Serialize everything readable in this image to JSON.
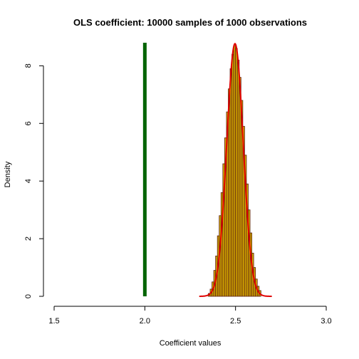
{
  "chart_data": {
    "type": "histogram",
    "title": "OLS coefficient:  10000  samples of  1000  observations",
    "xlabel": "Coefficient values",
    "ylabel": "Density",
    "xlim": [
      1.5,
      3.0
    ],
    "ylim": [
      0,
      8.8
    ],
    "xticks": [
      1.5,
      2.0,
      2.5,
      3.0
    ],
    "xtick_labels": [
      "1.5",
      "2.0",
      "2.5",
      "3.0"
    ],
    "yticks": [
      0,
      2,
      4,
      6,
      8
    ],
    "ytick_labels": [
      "0",
      "2",
      "4",
      "6",
      "8"
    ],
    "grid": false,
    "bin_width": 0.01,
    "bins": [
      {
        "x0": 2.35,
        "density": 0.1
      },
      {
        "x0": 2.36,
        "density": 0.25
      },
      {
        "x0": 2.37,
        "density": 0.5
      },
      {
        "x0": 2.38,
        "density": 0.9
      },
      {
        "x0": 2.39,
        "density": 1.4
      },
      {
        "x0": 2.4,
        "density": 2.1
      },
      {
        "x0": 2.41,
        "density": 2.8
      },
      {
        "x0": 2.42,
        "density": 3.6
      },
      {
        "x0": 2.43,
        "density": 4.6
      },
      {
        "x0": 2.44,
        "density": 5.5
      },
      {
        "x0": 2.45,
        "density": 6.4
      },
      {
        "x0": 2.46,
        "density": 7.2
      },
      {
        "x0": 2.47,
        "density": 7.9
      },
      {
        "x0": 2.48,
        "density": 8.4
      },
      {
        "x0": 2.49,
        "density": 8.7
      },
      {
        "x0": 2.5,
        "density": 8.6
      },
      {
        "x0": 2.51,
        "density": 8.2
      },
      {
        "x0": 2.52,
        "density": 7.6
      },
      {
        "x0": 2.53,
        "density": 6.8
      },
      {
        "x0": 2.54,
        "density": 5.9
      },
      {
        "x0": 2.55,
        "density": 4.9
      },
      {
        "x0": 2.56,
        "density": 3.9
      },
      {
        "x0": 2.57,
        "density": 3.0
      },
      {
        "x0": 2.58,
        "density": 2.2
      },
      {
        "x0": 2.59,
        "density": 1.5
      },
      {
        "x0": 2.6,
        "density": 1.0
      },
      {
        "x0": 2.61,
        "density": 0.6
      },
      {
        "x0": 2.62,
        "density": 0.35
      },
      {
        "x0": 2.63,
        "density": 0.2
      }
    ],
    "density_curve": {
      "x_range": [
        2.3,
        2.7
      ],
      "mean": 2.497,
      "sd": 0.0455
    },
    "vline": {
      "x": 2.0
    },
    "colors": {
      "bar_fill": "#D4A900",
      "bar_stroke": "#5A1F12",
      "curve": "#E00000",
      "vline": "#006400"
    }
  }
}
